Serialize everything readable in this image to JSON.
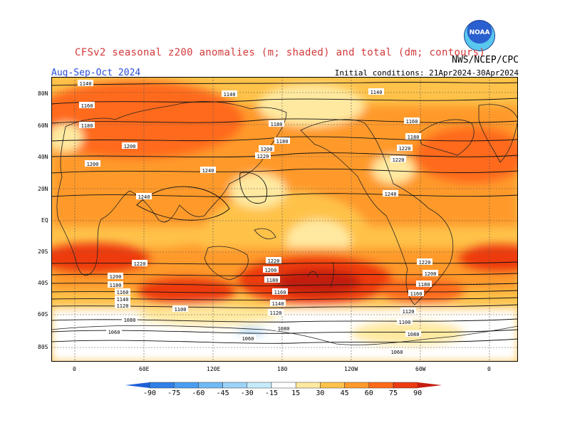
{
  "header": {
    "title": "CFSv2 seasonal z200 anomalies (m; shaded) and total (dm; contours)",
    "agency": "NWS/NCEP/CPC",
    "season": "Aug-Sep-Oct 2024",
    "initial_conditions": "Initial conditions: 21Apr2024-30Apr2024",
    "logo_text": "NOAA"
  },
  "axes": {
    "lat_labels": [
      "80N",
      "60N",
      "40N",
      "20N",
      "EQ",
      "20S",
      "40S",
      "60S",
      "80S"
    ],
    "lon_labels": [
      "0",
      "60E",
      "120E",
      "180",
      "120W",
      "60W",
      "0"
    ]
  },
  "colorbar": {
    "labels": [
      "-90",
      "-75",
      "-60",
      "-45",
      "-30",
      "-15",
      "15",
      "30",
      "45",
      "60",
      "75",
      "90"
    ],
    "colors": [
      "#1e5fd8",
      "#2f80e8",
      "#4a9df2",
      "#6fb9f5",
      "#9cd3f8",
      "#c6ebfb",
      "#ffffff",
      "#ffe9a0",
      "#ffc24a",
      "#ff9a2a",
      "#ff6a1a",
      "#ee3a10",
      "#c41e10"
    ]
  },
  "contour_labels": [
    {
      "text": "1140"
    },
    {
      "text": "1140"
    },
    {
      "text": "1140"
    },
    {
      "text": "1160"
    },
    {
      "text": "1180"
    },
    {
      "text": "1180"
    },
    {
      "text": "1160"
    },
    {
      "text": "1180"
    },
    {
      "text": "1180"
    },
    {
      "text": "1200"
    },
    {
      "text": "1200"
    },
    {
      "text": "1220"
    },
    {
      "text": "1200"
    },
    {
      "text": "1220"
    },
    {
      "text": "1220"
    },
    {
      "text": "1240"
    },
    {
      "text": "1240"
    },
    {
      "text": "1240"
    },
    {
      "text": "1220"
    },
    {
      "text": "1220"
    },
    {
      "text": "1220"
    },
    {
      "text": "1200"
    },
    {
      "text": "1200"
    },
    {
      "text": "1200"
    },
    {
      "text": "1180"
    },
    {
      "text": "1180"
    },
    {
      "text": "1180"
    },
    {
      "text": "1160"
    },
    {
      "text": "1160"
    },
    {
      "text": "1160"
    },
    {
      "text": "1140"
    },
    {
      "text": "1140"
    },
    {
      "text": "1120"
    },
    {
      "text": "1120"
    },
    {
      "text": "1120"
    },
    {
      "text": "1100"
    },
    {
      "text": "1100"
    },
    {
      "text": "1080"
    },
    {
      "text": "1080"
    },
    {
      "text": "1080"
    },
    {
      "text": "1060"
    },
    {
      "text": "1060"
    },
    {
      "text": "1060"
    }
  ]
}
